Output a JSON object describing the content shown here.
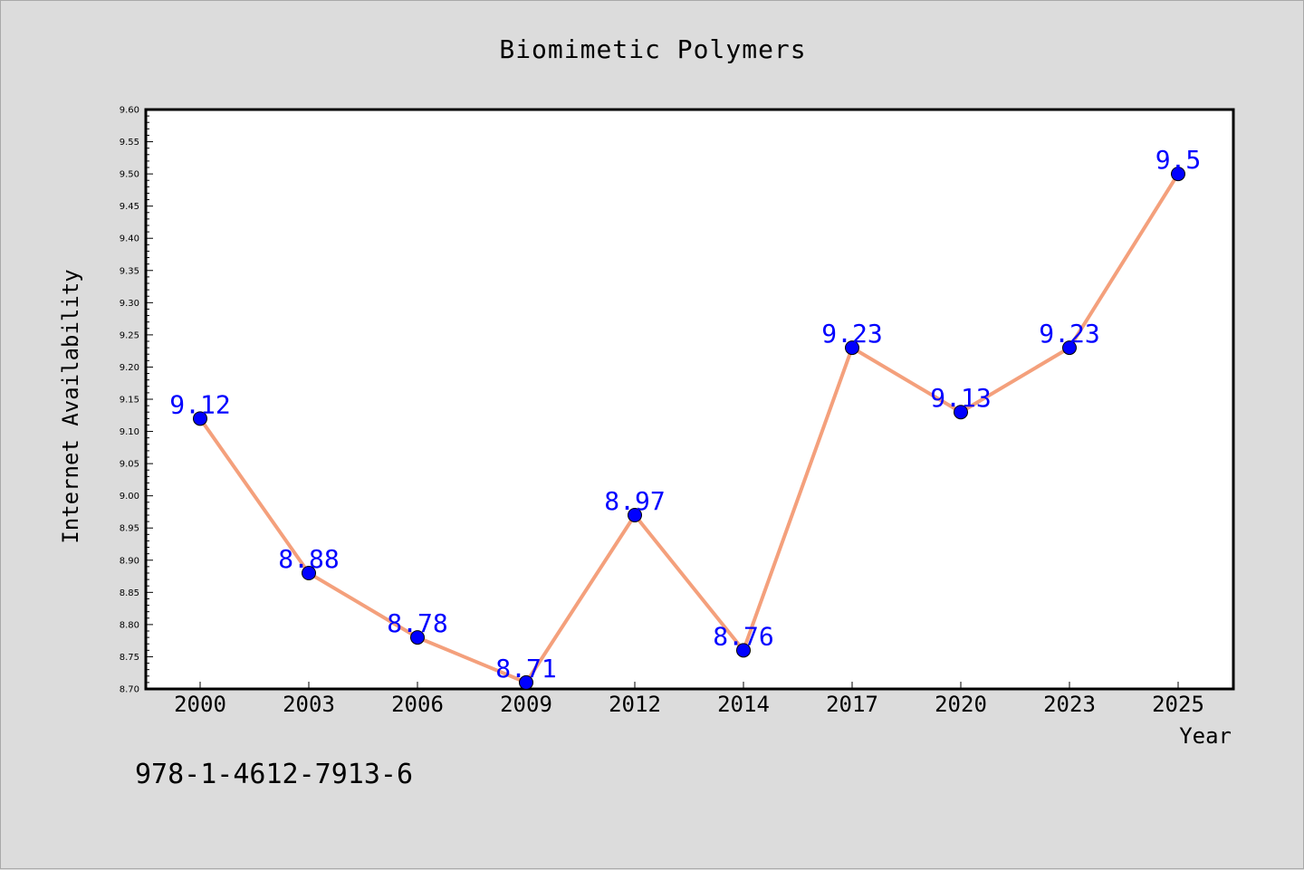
{
  "chart_data": {
    "type": "line",
    "title": "Biomimetic Polymers",
    "xlabel": "Year",
    "ylabel": "Internet Availability",
    "categories": [
      "2000",
      "2003",
      "2006",
      "2009",
      "2012",
      "2014",
      "2017",
      "2020",
      "2023",
      "2025"
    ],
    "series": [
      {
        "values": [
          9.12,
          8.88,
          8.78,
          8.71,
          8.97,
          8.76,
          9.23,
          9.13,
          9.23,
          9.5
        ],
        "labels": [
          "9.12",
          "8.88",
          "8.78",
          "8.71",
          "8.97",
          "8.76",
          "9.23",
          "9.13",
          "9.23",
          "9.5"
        ],
        "line_color": "#f4a07c",
        "marker_color": "#0000ff"
      }
    ],
    "ylim": [
      8.7,
      9.6
    ],
    "y_ticks": [
      "8.70",
      "8.75",
      "8.80",
      "8.85",
      "8.90",
      "8.95",
      "9.00",
      "9.05",
      "9.10",
      "9.15",
      "9.20",
      "9.25",
      "9.30",
      "9.35",
      "9.40",
      "9.45",
      "9.50",
      "9.55",
      "9.60"
    ],
    "grid": false,
    "legend": "none"
  },
  "annotation": "978-1-4612-7913-6",
  "colors": {
    "background": "#dcdcdc",
    "plot_background": "#ffffff",
    "data_label": "#0000ff"
  }
}
